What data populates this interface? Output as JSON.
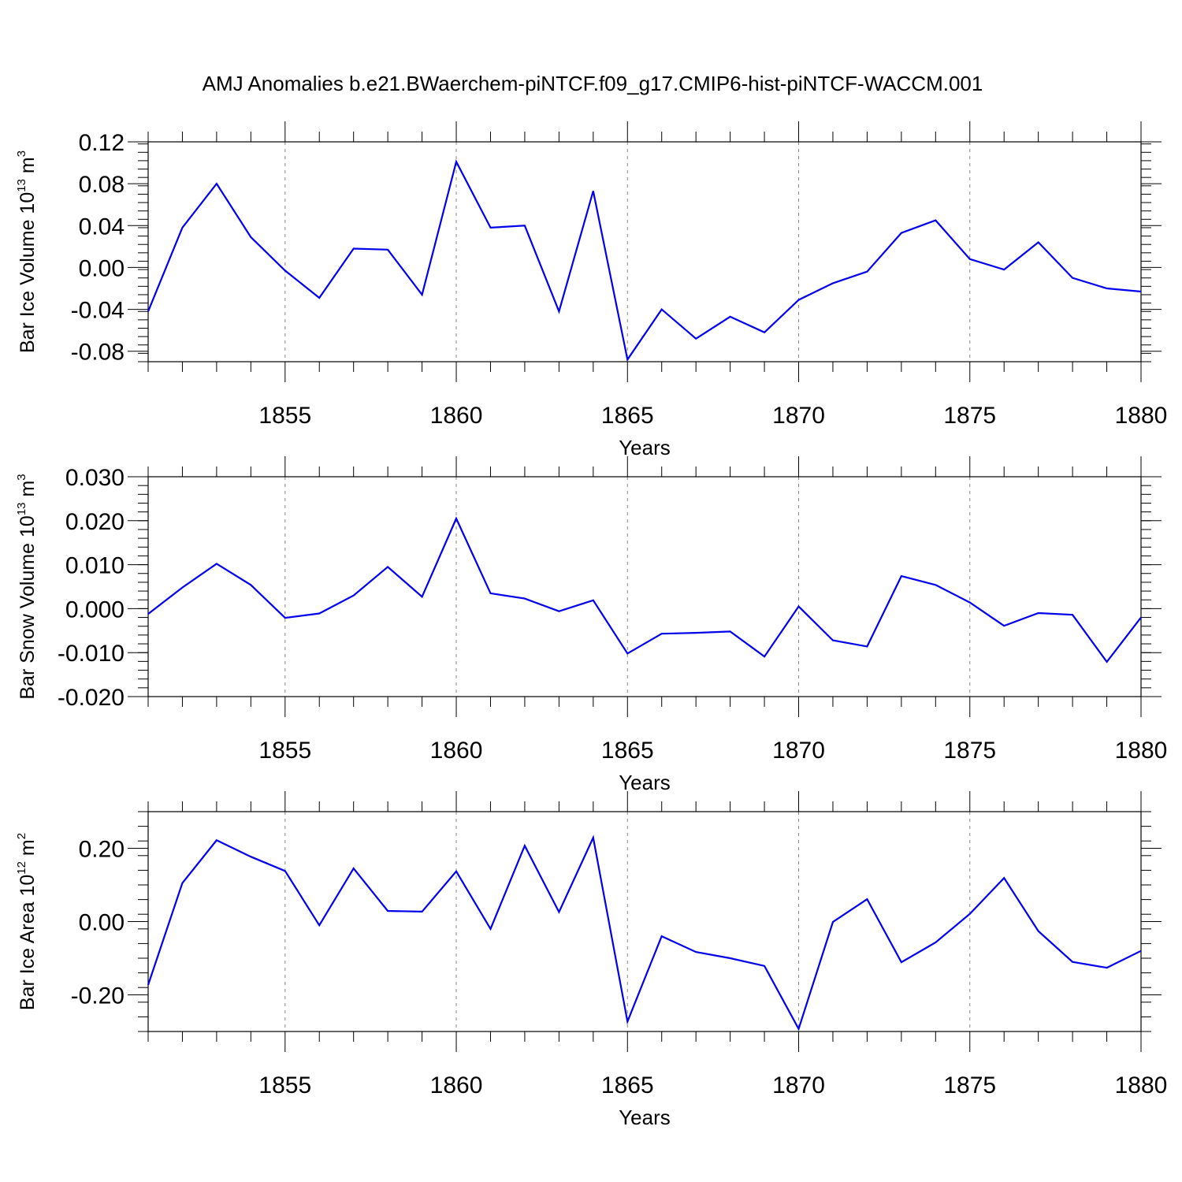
{
  "title": "AMJ Anomalies b.e21.BWaerchem-piNTCF.f09_g17.CMIP6-hist-piNTCF-WACCM.001",
  "colors": {
    "line": "#0000ee",
    "grid": "#888888",
    "axes": "#000000"
  },
  "chart_data": [
    {
      "type": "line",
      "name": "ice-volume",
      "ylabel_main": "Bar Ice Volume 10",
      "ylabel_exp": "13",
      "ylabel_unit": " m",
      "ylabel_unit_exp": "3",
      "xlabel": "Years",
      "xlim": [
        1851,
        1880
      ],
      "ylim": [
        -0.09,
        0.12
      ],
      "yticks": [
        -0.08,
        -0.04,
        0.0,
        0.04,
        0.08,
        0.12
      ],
      "ytick_labels": [
        "-0.08",
        "-0.04",
        "0.00",
        "0.04",
        "0.08",
        "0.12"
      ],
      "xticks": [
        1855,
        1860,
        1865,
        1870,
        1875,
        1880
      ],
      "xtick_labels": [
        "1855",
        "1860",
        "1865",
        "1870",
        "1875",
        "1880"
      ],
      "grid": "dashed vertical at major x ticks",
      "x": [
        1851,
        1852,
        1853,
        1854,
        1855,
        1856,
        1857,
        1858,
        1859,
        1860,
        1861,
        1862,
        1863,
        1864,
        1865,
        1866,
        1867,
        1868,
        1869,
        1870,
        1871,
        1872,
        1873,
        1874,
        1875,
        1876,
        1877,
        1878,
        1879,
        1880
      ],
      "values": [
        -0.042,
        0.038,
        0.08,
        0.029,
        -0.003,
        -0.029,
        0.018,
        0.017,
        -0.026,
        0.101,
        0.038,
        0.04,
        -0.042,
        0.073,
        -0.088,
        -0.04,
        -0.068,
        -0.047,
        -0.062,
        -0.031,
        -0.015,
        -0.004,
        0.033,
        0.045,
        0.008,
        -0.002,
        0.024,
        -0.01,
        -0.02,
        -0.023
      ]
    },
    {
      "type": "line",
      "name": "snow-volume",
      "ylabel_main": "Bar Snow Volume 10",
      "ylabel_exp": "13",
      "ylabel_unit": " m",
      "ylabel_unit_exp": "3",
      "xlabel": "Years",
      "xlim": [
        1851,
        1880
      ],
      "ylim": [
        -0.02,
        0.03
      ],
      "yticks": [
        -0.02,
        -0.01,
        0.0,
        0.01,
        0.02,
        0.03
      ],
      "ytick_labels": [
        "-0.020",
        "-0.010",
        "0.000",
        "0.010",
        "0.020",
        "0.030"
      ],
      "xticks": [
        1855,
        1860,
        1865,
        1870,
        1875,
        1880
      ],
      "xtick_labels": [
        "1855",
        "1860",
        "1865",
        "1870",
        "1875",
        "1880"
      ],
      "grid": "dashed vertical at major x ticks",
      "x": [
        1851,
        1852,
        1853,
        1854,
        1855,
        1856,
        1857,
        1858,
        1859,
        1860,
        1861,
        1862,
        1863,
        1864,
        1865,
        1866,
        1867,
        1868,
        1869,
        1870,
        1871,
        1872,
        1873,
        1874,
        1875,
        1876,
        1877,
        1878,
        1879,
        1880
      ],
      "values": [
        -0.0012,
        0.0048,
        0.0102,
        0.0054,
        -0.0021,
        -0.0011,
        0.003,
        0.0095,
        0.0027,
        0.0205,
        0.0035,
        0.0023,
        -0.0006,
        0.0019,
        -0.0102,
        -0.0057,
        -0.0055,
        -0.0052,
        -0.0109,
        0.0005,
        -0.0072,
        -0.0086,
        0.0074,
        0.0054,
        0.0014,
        -0.0039,
        -0.001,
        -0.0014,
        -0.0121,
        -0.002
      ]
    },
    {
      "type": "line",
      "name": "ice-area",
      "ylabel_main": "Bar Ice Area 10",
      "ylabel_exp": "12",
      "ylabel_unit": " m",
      "ylabel_unit_exp": "2",
      "xlabel": "Years",
      "xlim": [
        1851,
        1880
      ],
      "ylim": [
        -0.3,
        0.3
      ],
      "yticks": [
        -0.2,
        0.0,
        0.2
      ],
      "ytick_labels": [
        "-0.20",
        "0.00",
        "0.20"
      ],
      "xticks": [
        1855,
        1860,
        1865,
        1870,
        1875,
        1880
      ],
      "xtick_labels": [
        "1855",
        "1860",
        "1865",
        "1870",
        "1875",
        "1880"
      ],
      "grid": "dashed vertical at major x ticks",
      "x": [
        1851,
        1852,
        1853,
        1854,
        1855,
        1856,
        1857,
        1858,
        1859,
        1860,
        1861,
        1862,
        1863,
        1864,
        1865,
        1866,
        1867,
        1868,
        1869,
        1870,
        1871,
        1872,
        1873,
        1874,
        1875,
        1876,
        1877,
        1878,
        1879,
        1880
      ],
      "values": [
        -0.173,
        0.105,
        0.222,
        0.177,
        0.138,
        -0.01,
        0.145,
        0.029,
        0.027,
        0.137,
        -0.02,
        0.207,
        0.026,
        0.229,
        -0.273,
        -0.04,
        -0.083,
        -0.1,
        -0.121,
        -0.293,
        -0.001,
        0.061,
        -0.111,
        -0.057,
        0.021,
        0.119,
        -0.026,
        -0.11,
        -0.126,
        -0.08
      ]
    }
  ]
}
